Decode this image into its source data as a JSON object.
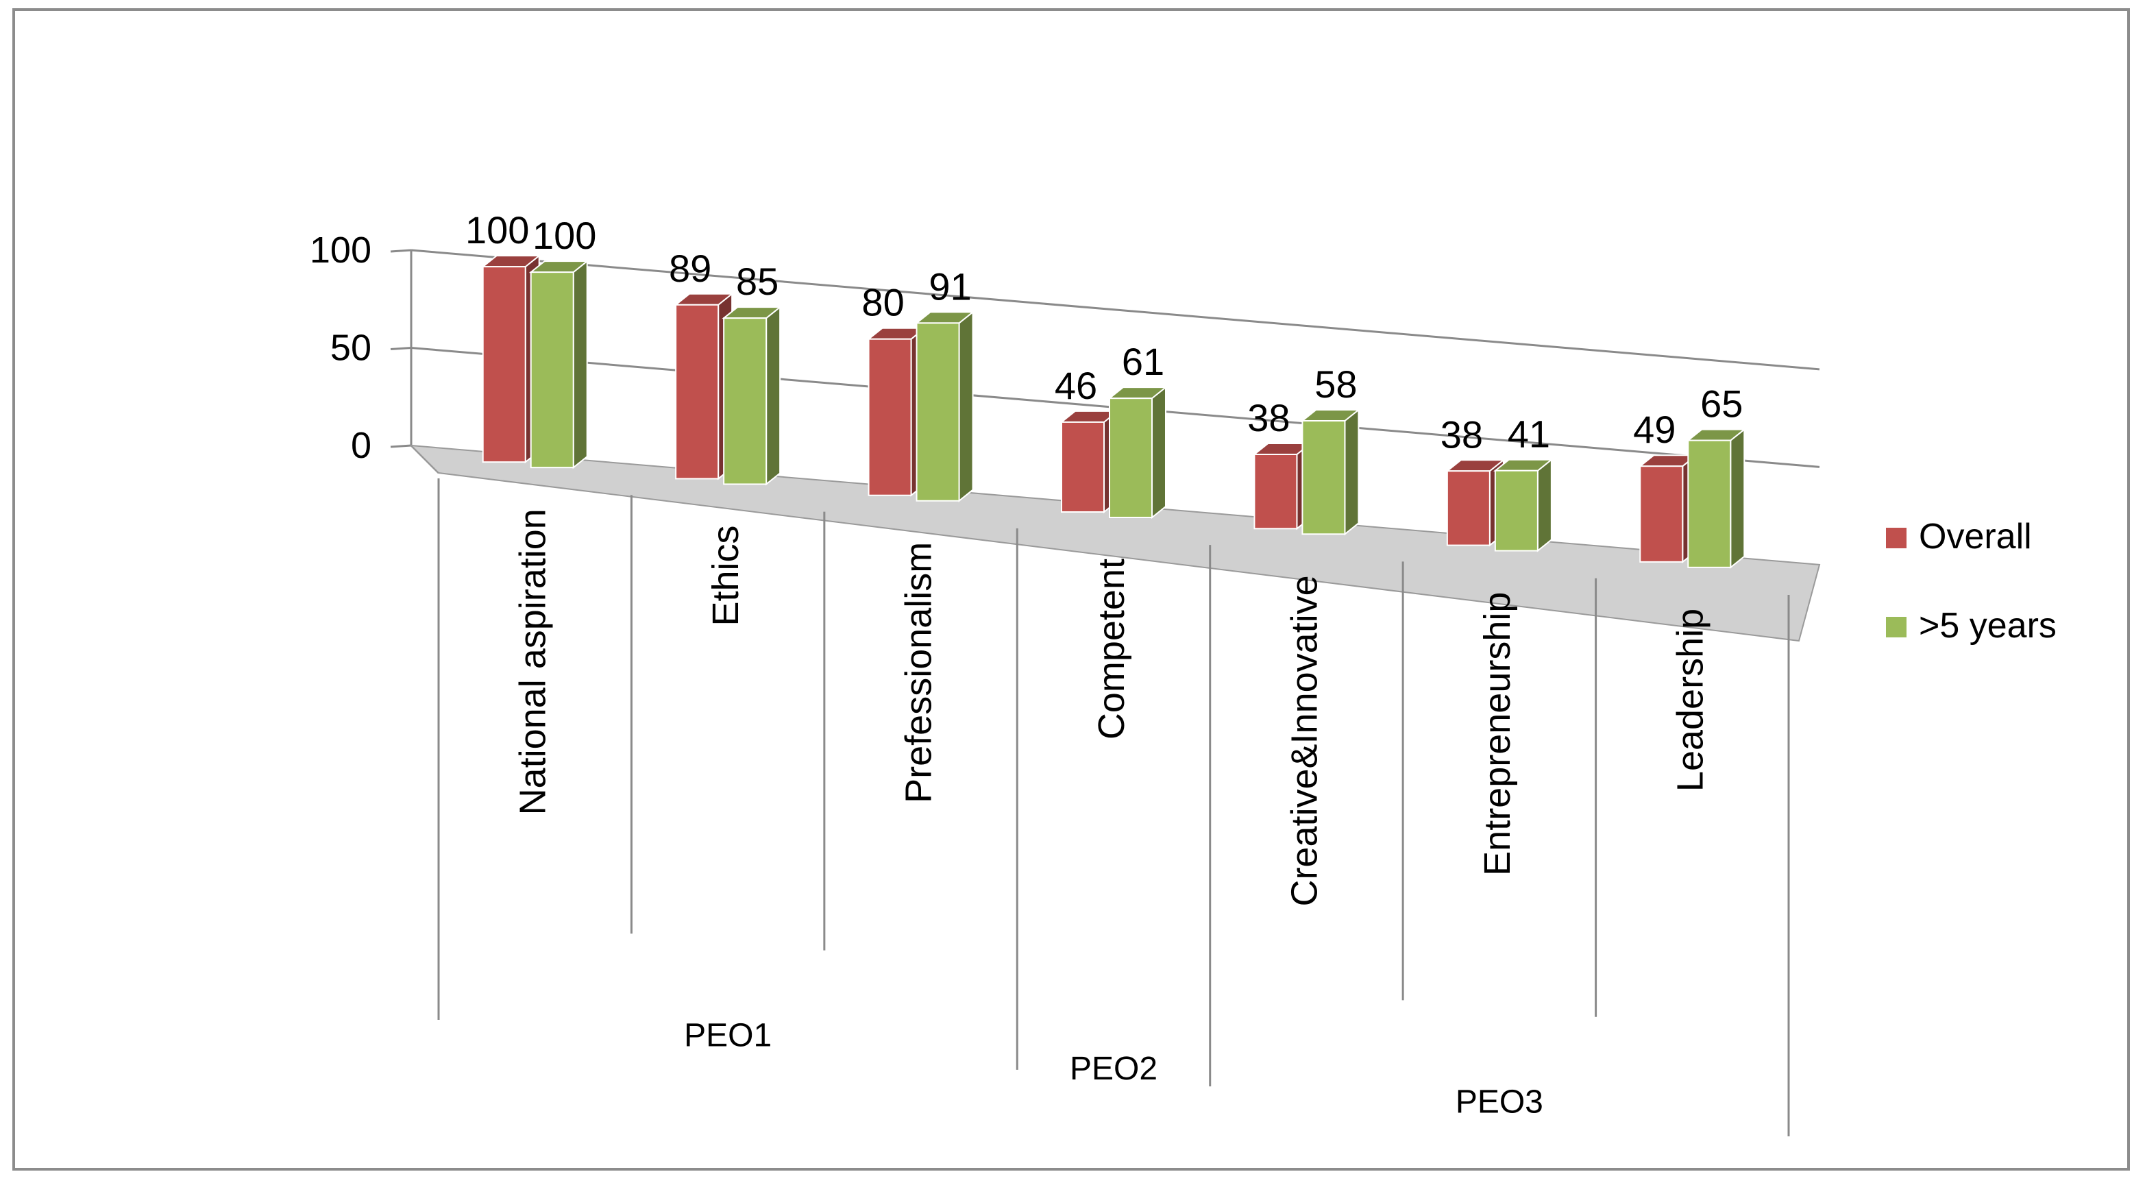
{
  "chart_data": {
    "type": "bar",
    "title": "",
    "xlabel": "",
    "ylabel": "",
    "ylim": [
      0,
      100
    ],
    "yticks": [
      0,
      50,
      100
    ],
    "categories": [
      "National aspiration",
      "Ethics",
      "Prefessionalism",
      "Competent",
      "Creative&Innovative",
      "Entrepreneurship",
      "Leadership"
    ],
    "groups": [
      {
        "label": "PEO1",
        "categories": [
          "National aspiration",
          "Ethics",
          "Prefessionalism"
        ]
      },
      {
        "label": "PEO2",
        "categories": [
          "Competent"
        ]
      },
      {
        "label": "PEO3",
        "categories": [
          "Creative&Innovative",
          "Entrepreneurship",
          "Leadership"
        ]
      }
    ],
    "series": [
      {
        "name": "Overall",
        "color": "#c0504d",
        "values": [
          100,
          89,
          80,
          46,
          38,
          38,
          49
        ]
      },
      {
        "name": ">5 years",
        "color": "#9bbb59",
        "values": [
          100,
          85,
          91,
          61,
          58,
          41,
          65
        ]
      }
    ],
    "legend_position": "right",
    "style": "3d-clustered-column"
  }
}
